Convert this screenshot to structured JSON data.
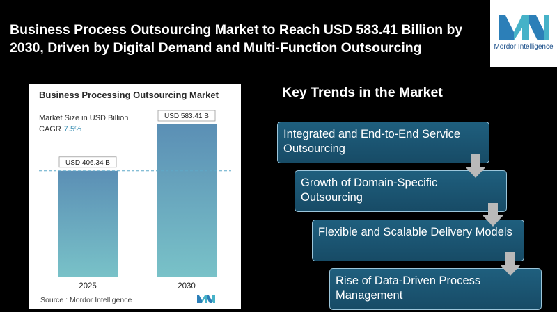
{
  "headline": "Business Process Outsourcing Market to Reach USD 583.41 Billion by 2030, Driven by Digital Demand and Multi-Function Outsourcing",
  "logo": {
    "text": "Mordor Intelligence",
    "icon": "mordor-logo-icon"
  },
  "card": {
    "title": "Business Processing Outsourcing Market",
    "subtitle": "Market Size in USD Billion",
    "cagr_label": "CAGR",
    "cagr_value": "7.5%",
    "source": "Source :  Mordor Intelligence"
  },
  "chart_data": {
    "type": "bar",
    "categories": [
      "2025",
      "2030"
    ],
    "values": [
      406.34,
      583.41
    ],
    "data_labels": [
      "USD 406.34 B",
      "USD 583.41 B"
    ],
    "reference_line": 406.34,
    "ylim": [
      0,
      650
    ],
    "grid": false,
    "colors": {
      "bar_top": "#5b8fb5",
      "bar_bottom": "#79c2c8",
      "reference_line": "#5fa8c8"
    }
  },
  "trends": {
    "title": "Key Trends in the Market",
    "items": [
      "Integrated and End-to-End Service Outsourcing",
      "Growth of Domain-Specific Outsourcing",
      "Flexible and Scalable Delivery Models",
      "Rise of Data-Driven Process Management"
    ]
  },
  "colors": {
    "background": "#000000",
    "trend_box": "#1f5f7e",
    "trend_border": "#9cc6db",
    "arrow": "#b9b9b9",
    "cagr": "#3c8fb3"
  }
}
